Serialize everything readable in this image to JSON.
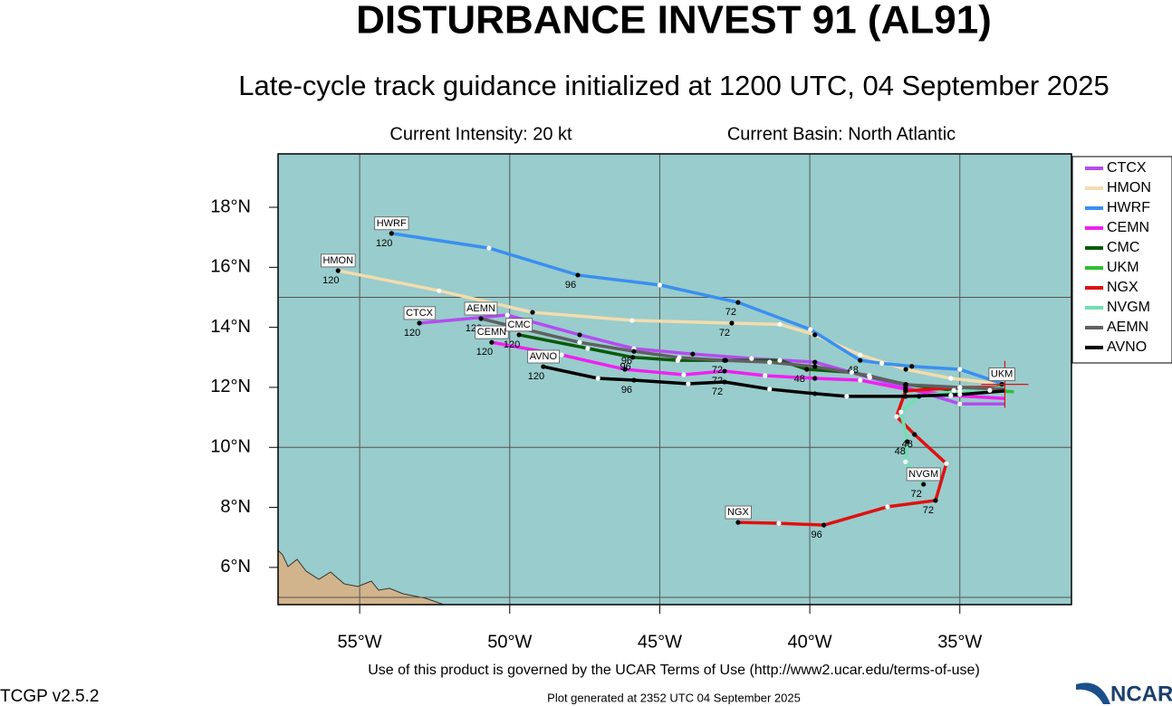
{
  "title": "DISTURBANCE INVEST 91 (AL91)",
  "subtitle": "Late-cycle track guidance initialized at 1200 UTC, 04 September 2025",
  "info": {
    "intensity": "Current Intensity: 20 kt",
    "basin": "Current Basin: North Atlantic"
  },
  "map": {
    "type": "track-map",
    "xlim": [
      -57.72,
      -31.28
    ],
    "ylim": [
      4.76,
      19.78
    ],
    "xticks": [
      {
        "value": -55,
        "label": "55°W"
      },
      {
        "value": -50,
        "label": "50°W"
      },
      {
        "value": -45,
        "label": "45°W"
      },
      {
        "value": -40,
        "label": "40°W"
      },
      {
        "value": -35,
        "label": "35°W"
      }
    ],
    "yticks": [
      {
        "value": 6,
        "label": "6°N"
      },
      {
        "value": 8,
        "label": "8°N"
      },
      {
        "value": 10,
        "label": "10°N"
      },
      {
        "value": 12,
        "label": "12°N"
      },
      {
        "value": 14,
        "label": "14°N"
      },
      {
        "value": 16,
        "label": "16°N"
      },
      {
        "value": 18,
        "label": "18°N"
      }
    ],
    "ygrid": [
      5,
      10,
      15
    ],
    "current_position": {
      "lon": -33.5,
      "lat": 12.1
    },
    "tracks": [
      {
        "name": "CTCX",
        "color": "#b44cf0",
        "lon": [
          -33.49,
          -35.0,
          -36.81,
          -38.0,
          -39.83,
          -41.94,
          -43.9,
          -45.86,
          -47.67,
          -50.08,
          -53.01
        ],
        "lat": [
          11.45,
          11.45,
          12.0,
          12.33,
          12.84,
          12.96,
          13.11,
          13.29,
          13.75,
          14.41,
          14.14
        ],
        "hours": [
          null,
          null,
          null,
          null,
          null,
          null,
          null,
          null,
          null,
          null,
          120
        ]
      },
      {
        "name": "HMON",
        "color": "#f3dcae",
        "lon": [
          -33.49,
          -35.3,
          -36.8,
          -38.32,
          -39.83,
          -41.0,
          -42.6,
          -45.92,
          -49.24,
          -52.35,
          -55.72
        ],
        "lat": [
          12.1,
          12.3,
          12.6,
          13.08,
          13.75,
          14.1,
          14.14,
          14.23,
          14.5,
          15.22,
          15.89
        ],
        "hours": [
          null,
          null,
          null,
          null,
          null,
          null,
          72,
          null,
          null,
          null,
          120
        ]
      },
      {
        "name": "HWRF",
        "color": "#3a8ff0",
        "lon": [
          -33.49,
          -35.0,
          -36.6,
          -37.6,
          -38.32,
          -39.98,
          -42.39,
          -45.0,
          -47.73,
          -50.69,
          -53.94
        ],
        "lat": [
          12.09,
          12.6,
          12.7,
          12.8,
          12.9,
          13.93,
          14.83,
          15.41,
          15.74,
          16.64,
          17.13
        ],
        "hours": [
          null,
          null,
          null,
          null,
          48,
          null,
          72,
          null,
          96,
          null,
          120
        ]
      },
      {
        "name": "CEMN",
        "color": "#f020f0",
        "lon": [
          -33.49,
          -35.3,
          -36.81,
          -38.32,
          -39.83,
          -41.49,
          -42.84,
          -44.2,
          -46.16,
          -48.27,
          -50.6
        ],
        "lat": [
          11.63,
          11.73,
          11.94,
          12.24,
          12.3,
          12.39,
          12.54,
          12.42,
          12.6,
          13.08,
          13.5
        ],
        "hours": [
          null,
          null,
          null,
          null,
          null,
          null,
          72,
          null,
          null,
          null,
          120
        ]
      },
      {
        "name": "CMC",
        "color": "#0a5a0a",
        "lon": [
          -33.49,
          -35.2,
          -36.8,
          -38.6,
          -40.1,
          -41.0,
          -42.8,
          -44.4,
          -45.9,
          -47.4,
          -49.69
        ],
        "lat": [
          12.0,
          11.9,
          12.1,
          12.5,
          12.6,
          12.9,
          12.9,
          12.9,
          13.0,
          13.3,
          13.75
        ],
        "hours": [
          null,
          null,
          null,
          null,
          48,
          null,
          null,
          null,
          96,
          null,
          120
        ]
      },
      {
        "name": "UKM",
        "color": "#30c030",
        "lon": [
          -33.2,
          -34.0,
          -33.6
        ],
        "lat": [
          11.85,
          11.9,
          12.1
        ],
        "hours": [
          null,
          null,
          null
        ]
      },
      {
        "name": "NGX",
        "color": "#e01010",
        "lon": [
          -33.49,
          -35.0,
          -36.81,
          -37.11,
          -36.51,
          -35.45,
          -35.81,
          -37.41,
          -39.53,
          -41.03,
          -42.39
        ],
        "lat": [
          12.0,
          12.0,
          11.88,
          11.03,
          10.43,
          9.46,
          8.23,
          8.02,
          7.41,
          7.47,
          7.5
        ],
        "hours": [
          null,
          null,
          null,
          null,
          48,
          null,
          72,
          null,
          96,
          null,
          null
        ]
      },
      {
        "name": "NVGM",
        "color": "#70e0b0",
        "lon": [
          -33.49,
          -35.0,
          -36.36,
          -36.96,
          -36.75,
          -36.81,
          -36.21
        ],
        "lat": [
          12.0,
          11.88,
          11.7,
          11.18,
          10.19,
          9.52,
          8.77
        ],
        "hours": [
          null,
          null,
          null,
          null,
          48,
          null,
          72
        ]
      },
      {
        "name": "AEMN",
        "color": "#606060",
        "lon": [
          -33.49,
          -35.0,
          -36.81,
          -38.02,
          -39.83,
          -41.34,
          -42.84,
          -44.35,
          -45.86,
          -47.67,
          -50.96
        ],
        "lat": [
          11.94,
          12.0,
          12.09,
          12.39,
          12.69,
          12.84,
          12.9,
          12.99,
          13.2,
          13.5,
          14.29
        ],
        "hours": [
          null,
          null,
          null,
          null,
          null,
          null,
          72,
          null,
          96,
          null,
          120
        ]
      },
      {
        "name": "AVNO",
        "color": "#000000",
        "lon": [
          -33.49,
          -35.0,
          -36.81,
          -38.77,
          -39.83,
          -41.34,
          -42.84,
          -44.05,
          -45.86,
          -47.06,
          -48.88
        ],
        "lat": [
          11.88,
          11.76,
          11.7,
          11.7,
          11.79,
          11.94,
          12.18,
          12.12,
          12.24,
          12.3,
          12.69
        ],
        "hours": [
          null,
          null,
          null,
          null,
          null,
          null,
          72,
          null,
          96,
          null,
          120
        ]
      }
    ]
  },
  "footer": {
    "terms": "Use of this product is governed by the UCAR Terms of Use (http://www2.ucar.edu/terms-of-use)",
    "version": "TCGP v2.5.2",
    "generated": "Plot generated at 2352 UTC   04 September 2025",
    "logo": "NCAR"
  }
}
